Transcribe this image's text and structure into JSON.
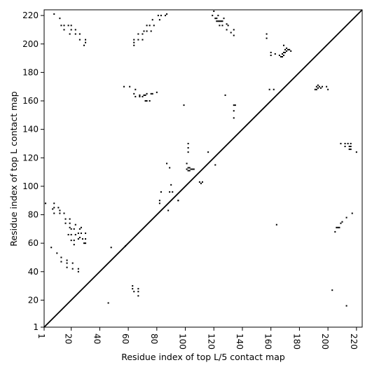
{
  "chart_data": {
    "type": "scatter",
    "title": "",
    "xlabel": "Residue index of top L/5 contact map",
    "ylabel": "Residue index of top L contact map",
    "xlim": [
      1,
      224
    ],
    "ylim": [
      1,
      224
    ],
    "x_ticks": [
      1,
      20,
      40,
      60,
      80,
      100,
      120,
      140,
      160,
      180,
      200,
      220
    ],
    "y_ticks": [
      1,
      20,
      40,
      60,
      80,
      100,
      120,
      140,
      160,
      180,
      200,
      220
    ],
    "grid": false,
    "marker": "square",
    "color": "#000000",
    "diagonal": true,
    "series": [
      {
        "label_region": "upper-left",
        "points": [
          [
            8,
            221
          ],
          [
            12,
            218
          ],
          [
            13,
            213
          ],
          [
            15,
            210
          ],
          [
            15,
            213
          ],
          [
            18,
            213
          ],
          [
            19,
            207
          ],
          [
            20,
            210
          ],
          [
            20,
            213
          ],
          [
            23,
            207
          ],
          [
            23,
            210
          ],
          [
            26,
            203
          ],
          [
            26,
            207
          ],
          [
            29,
            199
          ],
          [
            30,
            201
          ],
          [
            30,
            203
          ],
          [
            64,
            199
          ],
          [
            64,
            201
          ],
          [
            64,
            203
          ],
          [
            67,
            203
          ],
          [
            67,
            207
          ],
          [
            70,
            203
          ],
          [
            70,
            207
          ],
          [
            71,
            209
          ],
          [
            73,
            209
          ],
          [
            73,
            213
          ],
          [
            75,
            213
          ],
          [
            76,
            209
          ],
          [
            77,
            217
          ],
          [
            78,
            213
          ],
          [
            81,
            220
          ],
          [
            82,
            217
          ],
          [
            83,
            220
          ],
          [
            86,
            220
          ],
          [
            87,
            221
          ],
          [
            99,
            157
          ],
          [
            101,
            112
          ],
          [
            101,
            116
          ],
          [
            102,
            111
          ],
          [
            102,
            113
          ],
          [
            102,
            124
          ],
          [
            102,
            127
          ],
          [
            102,
            130
          ],
          [
            103,
            111
          ],
          [
            103,
            113
          ],
          [
            104,
            112
          ],
          [
            105,
            112
          ],
          [
            106,
            112
          ],
          [
            110,
            103
          ],
          [
            111,
            102
          ],
          [
            112,
            103
          ],
          [
            116,
            124
          ],
          [
            119,
            220
          ],
          [
            120,
            223
          ],
          [
            121,
            218
          ],
          [
            122,
            216
          ],
          [
            122,
            218
          ],
          [
            123,
            216
          ],
          [
            123,
            220
          ],
          [
            124,
            213
          ],
          [
            124,
            216
          ],
          [
            125,
            216
          ],
          [
            126,
            213
          ],
          [
            126,
            216
          ],
          [
            127,
            218
          ],
          [
            128,
            164
          ],
          [
            129,
            210
          ],
          [
            129,
            214
          ],
          [
            130,
            213
          ],
          [
            132,
            208
          ],
          [
            134,
            206
          ],
          [
            134,
            210
          ],
          [
            134,
            148
          ],
          [
            134,
            153
          ],
          [
            134,
            157
          ],
          [
            135,
            157
          ],
          [
            157,
            204
          ],
          [
            157,
            207
          ],
          [
            159,
            168
          ],
          [
            160,
            192
          ],
          [
            160,
            194
          ],
          [
            162,
            168
          ],
          [
            163,
            193
          ],
          [
            166,
            192
          ],
          [
            167,
            191
          ],
          [
            168,
            191
          ],
          [
            168,
            193
          ],
          [
            169,
            192
          ],
          [
            169,
            194
          ],
          [
            169,
            199
          ],
          [
            170,
            194
          ],
          [
            170,
            196
          ],
          [
            171,
            195
          ],
          [
            171,
            197
          ],
          [
            172,
            196
          ],
          [
            173,
            196
          ],
          [
            174,
            195
          ],
          [
            191,
            168
          ],
          [
            192,
            168
          ],
          [
            192,
            170
          ],
          [
            193,
            169
          ],
          [
            193,
            171
          ],
          [
            194,
            170
          ],
          [
            195,
            169
          ],
          [
            196,
            170
          ],
          [
            199,
            170
          ],
          [
            200,
            168
          ],
          [
            57,
            170
          ],
          [
            61,
            170
          ],
          [
            64,
            165
          ],
          [
            65,
            168
          ],
          [
            65,
            163
          ],
          [
            68,
            163
          ],
          [
            68,
            164
          ],
          [
            70,
            163
          ],
          [
            71,
            164
          ],
          [
            72,
            160
          ],
          [
            72,
            164
          ],
          [
            73,
            160
          ],
          [
            73,
            165
          ],
          [
            75,
            160
          ],
          [
            76,
            165
          ],
          [
            77,
            165
          ],
          [
            80,
            166
          ],
          [
            87,
            116
          ],
          [
            89,
            96
          ],
          [
            89,
            113
          ],
          [
            90,
            101
          ],
          [
            91,
            96
          ],
          [
            95,
            90
          ],
          [
            58,
            58
          ]
        ]
      },
      {
        "label_region": "lower-right",
        "points": [
          [
            2,
            88
          ],
          [
            6,
            57
          ],
          [
            7,
            84
          ],
          [
            8,
            81
          ],
          [
            8,
            85
          ],
          [
            8,
            88
          ],
          [
            10,
            53
          ],
          [
            11,
            85
          ],
          [
            12,
            81
          ],
          [
            12,
            83
          ],
          [
            13,
            50
          ],
          [
            13,
            47
          ],
          [
            15,
            81
          ],
          [
            16,
            74
          ],
          [
            16,
            77
          ],
          [
            17,
            43
          ],
          [
            17,
            46
          ],
          [
            17,
            48
          ],
          [
            18,
            66
          ],
          [
            19,
            71
          ],
          [
            19,
            74
          ],
          [
            19,
            77
          ],
          [
            20,
            62
          ],
          [
            20,
            66
          ],
          [
            20,
            70
          ],
          [
            21,
            42
          ],
          [
            21,
            46
          ],
          [
            22,
            59
          ],
          [
            22,
            62
          ],
          [
            22,
            70
          ],
          [
            23,
            66
          ],
          [
            23,
            73
          ],
          [
            25,
            40
          ],
          [
            25,
            42
          ],
          [
            25,
            63
          ],
          [
            25,
            67
          ],
          [
            26,
            64
          ],
          [
            26,
            70
          ],
          [
            27,
            71
          ],
          [
            27,
            67
          ],
          [
            28,
            63
          ],
          [
            29,
            60
          ],
          [
            30,
            60
          ],
          [
            30,
            63
          ],
          [
            30,
            67
          ],
          [
            46,
            18
          ],
          [
            48,
            57
          ],
          [
            63,
            28
          ],
          [
            63,
            30
          ],
          [
            64,
            26
          ],
          [
            67,
            23
          ],
          [
            67,
            26
          ],
          [
            67,
            28
          ],
          [
            82,
            88
          ],
          [
            82,
            90
          ],
          [
            83,
            96
          ],
          [
            88,
            83
          ],
          [
            95,
            90
          ],
          [
            121,
            115
          ],
          [
            164,
            73
          ],
          [
            203,
            27
          ],
          [
            205,
            68
          ],
          [
            206,
            71
          ],
          [
            207,
            71
          ],
          [
            208,
            71
          ],
          [
            209,
            74
          ],
          [
            210,
            75
          ],
          [
            209,
            130
          ],
          [
            212,
            128
          ],
          [
            212,
            130
          ],
          [
            213,
            78
          ],
          [
            214,
            130
          ],
          [
            215,
            126
          ],
          [
            215,
            128
          ],
          [
            216,
            126
          ],
          [
            216,
            128
          ],
          [
            216,
            130
          ],
          [
            217,
            81
          ],
          [
            220,
            124
          ],
          [
            213,
            16
          ]
        ]
      }
    ]
  }
}
